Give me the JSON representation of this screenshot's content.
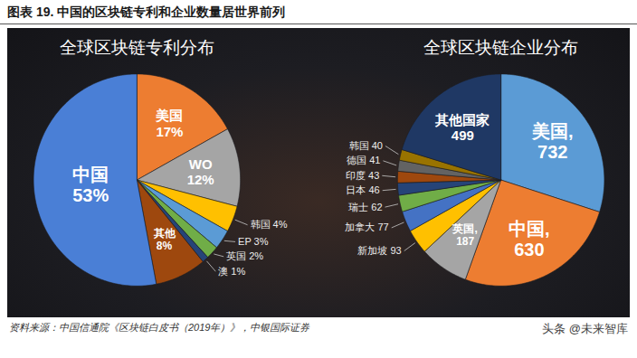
{
  "title": "图表 19. 中国的区块链专利和企业数量居世界前列",
  "source": "资料来源：中国信通院《区块链白皮书（2019年）》，中银国际证券",
  "watermark": "头条 @未来智库",
  "chart_data": [
    {
      "type": "pie",
      "title": "全球区块链专利分布",
      "categories": [
        "美国",
        "WO",
        "韩国",
        "EP",
        "英国",
        "澳",
        "其他",
        "中国"
      ],
      "values": [
        17,
        12,
        4,
        3,
        2,
        1,
        8,
        53
      ],
      "value_labels": [
        "17%",
        "12%",
        "4%",
        "3%",
        "2%",
        "1%",
        "8%",
        "53%"
      ],
      "colors": [
        "#ed7d31",
        "#a5a5a5",
        "#ffc000",
        "#5b9bd5",
        "#70ad47",
        "#264478",
        "#9e480e",
        "#4a7fd6"
      ],
      "data_labels": true
    },
    {
      "type": "pie",
      "title": "全球区块链企业分布",
      "categories": [
        "美国,",
        "中国,",
        "英国,",
        "新加坡",
        "加拿大",
        "瑞士",
        "日本",
        "印度",
        "德国",
        "韩国",
        "其他国家"
      ],
      "values": [
        732,
        630,
        187,
        93,
        77,
        62,
        46,
        43,
        41,
        40,
        499
      ],
      "colors": [
        "#5b9bd5",
        "#ed7d31",
        "#a5a5a5",
        "#ffc000",
        "#4472c4",
        "#70ad47",
        "#264478",
        "#9e480e",
        "#636363",
        "#997300",
        "#1f3864"
      ],
      "data_labels": true
    }
  ]
}
